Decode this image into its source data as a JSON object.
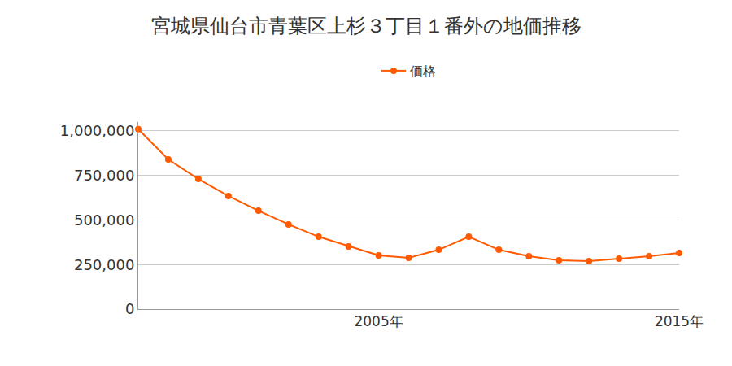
{
  "chart_data": {
    "type": "line",
    "title": "宮城県仙台市青葉区上杉３丁目１番外の地価推移",
    "x": [
      1997,
      1998,
      1999,
      2000,
      2001,
      2002,
      2003,
      2004,
      2005,
      2006,
      2007,
      2008,
      2009,
      2010,
      2011,
      2012,
      2013,
      2014,
      2015
    ],
    "series": [
      {
        "name": "価格",
        "color": "#ff5a00",
        "values": [
          1010000,
          840000,
          730000,
          635000,
          552000,
          475000,
          406000,
          352000,
          301000,
          288000,
          333000,
          406000,
          333000,
          297000,
          274000,
          269000,
          283000,
          297000,
          315000
        ]
      }
    ],
    "xlim": [
      1997,
      2015
    ],
    "xticks": [
      {
        "value": 2005,
        "label": "2005年"
      },
      {
        "value": 2015,
        "label": "2015年"
      }
    ],
    "ylim": [
      0,
      1050000
    ],
    "yticks": [
      0,
      {
        "value": 250000,
        "label": "250,000"
      },
      {
        "value": 500000,
        "label": "500,000"
      },
      {
        "value": 750000,
        "label": "750,000"
      },
      {
        "value": 1000000,
        "label": "1,000,000"
      }
    ],
    "grid": true,
    "legend": "top",
    "marker": "circle"
  }
}
